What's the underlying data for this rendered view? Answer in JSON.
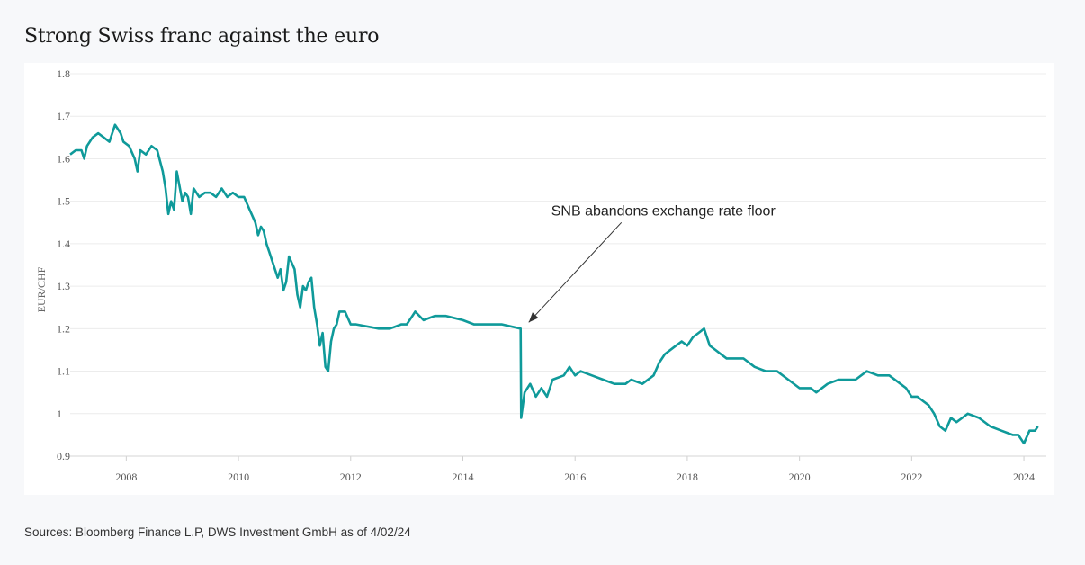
{
  "title": "Strong Swiss franc against the euro",
  "source": "Sources: Bloomberg Finance L.P, DWS Investment GmbH as of 4/02/24",
  "chart_data": {
    "type": "line",
    "title": "Strong Swiss franc against the euro",
    "ylabel": "EUR/CHF",
    "xlabel": "",
    "ylim": [
      0.9,
      1.8
    ],
    "xlim": [
      2007.0,
      2024.4
    ],
    "yticks": [
      "0.9",
      "1",
      "1.1",
      "1.2",
      "1.3",
      "1.4",
      "1.5",
      "1.6",
      "1.7",
      "1.8"
    ],
    "xticks": [
      "2008",
      "2010",
      "2012",
      "2014",
      "2016",
      "2018",
      "2020",
      "2022",
      "2024"
    ],
    "grid": true,
    "line_color": "#0f9a9a",
    "annotation": {
      "text": "SNB abandons exchange rate floor",
      "point_x": 2015.03,
      "point_y": 1.2
    },
    "series": [
      {
        "x": [
          2007.0,
          2007.1,
          2007.2,
          2007.25,
          2007.3,
          2007.4,
          2007.5,
          2007.6,
          2007.7,
          2007.8,
          2007.9,
          2007.95,
          2008.05,
          2008.15,
          2008.2,
          2008.25,
          2008.35,
          2008.45,
          2008.55,
          2008.65,
          2008.7,
          2008.75,
          2008.8,
          2008.85,
          2008.9,
          2009.0,
          2009.05,
          2009.1,
          2009.15,
          2009.2,
          2009.3,
          2009.4,
          2009.5,
          2009.6,
          2009.7,
          2009.8,
          2009.9,
          2010.0,
          2010.1,
          2010.2,
          2010.3,
          2010.35,
          2010.4,
          2010.45,
          2010.5,
          2010.55,
          2010.6,
          2010.7,
          2010.75,
          2010.8,
          2010.85,
          2010.9,
          2011.0,
          2011.05,
          2011.1,
          2011.15,
          2011.2,
          2011.25,
          2011.3,
          2011.35,
          2011.4,
          2011.45,
          2011.5,
          2011.55,
          2011.6,
          2011.65,
          2011.7,
          2011.75,
          2011.8,
          2011.9,
          2012.0,
          2012.1,
          2012.5,
          2012.7,
          2012.9,
          2013.0,
          2013.1,
          2013.15,
          2013.3,
          2013.5,
          2013.7,
          2014.0,
          2014.2,
          2014.5,
          2014.7,
          2015.03,
          2015.04,
          2015.1,
          2015.2,
          2015.3,
          2015.4,
          2015.5,
          2015.6,
          2015.8,
          2015.9,
          2016.0,
          2016.1,
          2016.3,
          2016.5,
          2016.7,
          2016.9,
          2017.0,
          2017.2,
          2017.4,
          2017.5,
          2017.6,
          2017.8,
          2017.9,
          2018.0,
          2018.1,
          2018.2,
          2018.3,
          2018.4,
          2018.5,
          2018.6,
          2018.7,
          2018.8,
          2019.0,
          2019.2,
          2019.4,
          2019.6,
          2019.8,
          2020.0,
          2020.2,
          2020.3,
          2020.5,
          2020.7,
          2020.9,
          2021.0,
          2021.2,
          2021.4,
          2021.6,
          2021.8,
          2021.9,
          2022.0,
          2022.1,
          2022.2,
          2022.3,
          2022.4,
          2022.5,
          2022.6,
          2022.7,
          2022.8,
          2022.9,
          2023.0,
          2023.2,
          2023.4,
          2023.6,
          2023.8,
          2023.9,
          2024.0,
          2024.1,
          2024.2,
          2024.25
        ],
        "y": [
          1.61,
          1.62,
          1.62,
          1.6,
          1.63,
          1.65,
          1.66,
          1.65,
          1.64,
          1.68,
          1.66,
          1.64,
          1.63,
          1.6,
          1.57,
          1.62,
          1.61,
          1.63,
          1.62,
          1.57,
          1.53,
          1.47,
          1.5,
          1.48,
          1.57,
          1.5,
          1.52,
          1.51,
          1.47,
          1.53,
          1.51,
          1.52,
          1.52,
          1.51,
          1.53,
          1.51,
          1.52,
          1.51,
          1.51,
          1.48,
          1.45,
          1.42,
          1.44,
          1.43,
          1.4,
          1.38,
          1.36,
          1.32,
          1.34,
          1.29,
          1.31,
          1.37,
          1.34,
          1.28,
          1.25,
          1.3,
          1.29,
          1.31,
          1.32,
          1.25,
          1.21,
          1.16,
          1.19,
          1.11,
          1.1,
          1.17,
          1.2,
          1.21,
          1.24,
          1.24,
          1.21,
          1.21,
          1.2,
          1.2,
          1.21,
          1.21,
          1.23,
          1.24,
          1.22,
          1.23,
          1.23,
          1.22,
          1.21,
          1.21,
          1.21,
          1.2,
          0.99,
          1.05,
          1.07,
          1.04,
          1.06,
          1.04,
          1.08,
          1.09,
          1.11,
          1.09,
          1.1,
          1.09,
          1.08,
          1.07,
          1.07,
          1.08,
          1.07,
          1.09,
          1.12,
          1.14,
          1.16,
          1.17,
          1.16,
          1.18,
          1.19,
          1.2,
          1.16,
          1.15,
          1.14,
          1.13,
          1.13,
          1.13,
          1.11,
          1.1,
          1.1,
          1.08,
          1.06,
          1.06,
          1.05,
          1.07,
          1.08,
          1.08,
          1.08,
          1.1,
          1.09,
          1.09,
          1.07,
          1.06,
          1.04,
          1.04,
          1.03,
          1.02,
          1.0,
          0.97,
          0.96,
          0.99,
          0.98,
          0.99,
          1.0,
          0.99,
          0.97,
          0.96,
          0.95,
          0.95,
          0.93,
          0.96,
          0.96,
          0.97
        ]
      }
    ]
  }
}
